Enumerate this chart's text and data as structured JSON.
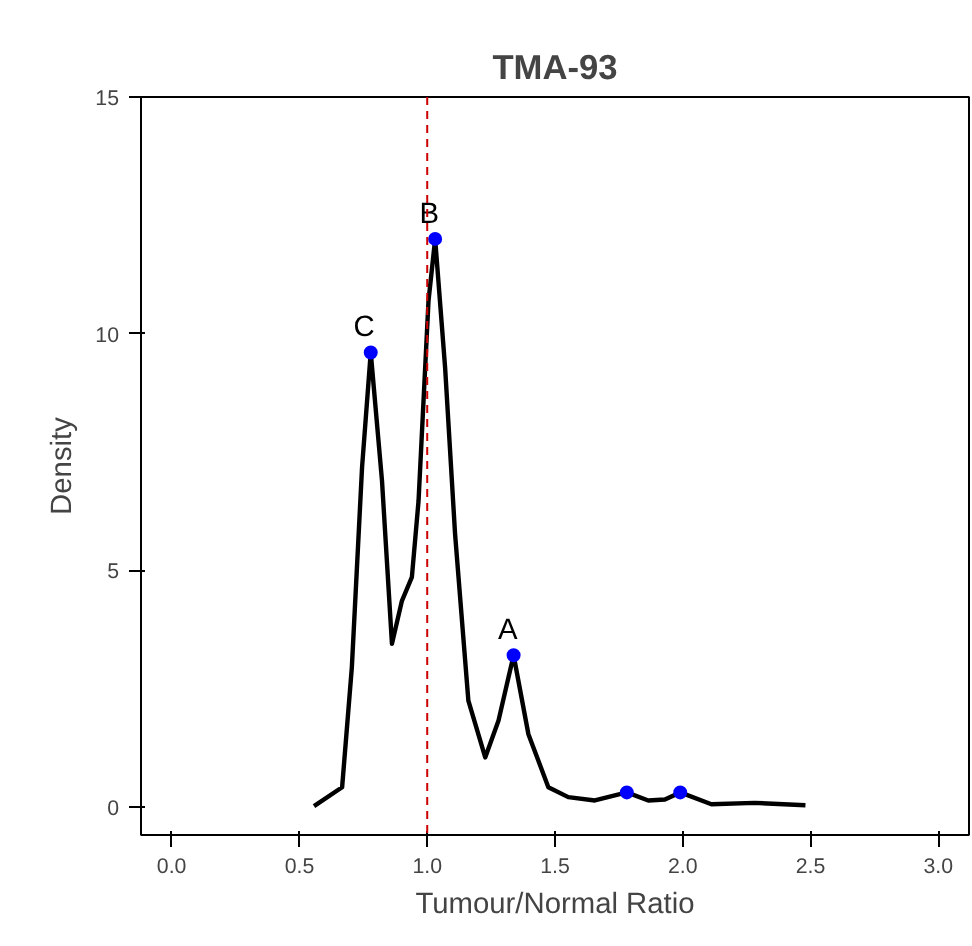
{
  "chart_data": {
    "type": "line",
    "title": "TMA-93",
    "xlabel": "Tumour/Normal Ratio",
    "ylabel": "Density",
    "xlim": [
      -0.12,
      3.12
    ],
    "ylim": [
      -0.6,
      15
    ],
    "xticks": [
      {
        "value": 0,
        "label": "0.0"
      },
      {
        "value": 0.5,
        "label": "0.5"
      },
      {
        "value": 1,
        "label": "1.0"
      },
      {
        "value": 1.5,
        "label": "1.5"
      },
      {
        "value": 2,
        "label": "2.0"
      },
      {
        "value": 2.5,
        "label": "2.5"
      },
      {
        "value": 3,
        "label": "3.0"
      }
    ],
    "yticks": [
      0,
      5,
      10,
      15
    ],
    "grid": false,
    "series": [
      {
        "type": "line",
        "color": "#000000",
        "x": [
          0.557,
          0.667,
          0.705,
          0.745,
          0.779,
          0.823,
          0.862,
          0.901,
          0.94,
          0.966,
          1.005,
          1.031,
          1.07,
          1.109,
          1.161,
          1.227,
          1.279,
          1.338,
          1.396,
          1.474,
          1.552,
          1.656,
          1.781,
          1.865,
          1.93,
          1.99,
          2.112,
          2.28,
          2.48
        ],
        "values": [
          0.01,
          0.41,
          2.94,
          7.17,
          9.6,
          6.89,
          3.44,
          4.35,
          4.85,
          6.46,
          10.69,
          12.0,
          9.28,
          5.76,
          2.24,
          1.04,
          1.82,
          3.2,
          1.53,
          0.41,
          0.2,
          0.13,
          0.3,
          0.13,
          0.15,
          0.3,
          0.05,
          0.08,
          0.03
        ]
      },
      {
        "type": "scatter",
        "color": "#0000ff",
        "marker": "circle",
        "x": [
          0.779,
          1.031,
          1.338,
          1.781,
          1.99
        ],
        "values": [
          9.6,
          12.0,
          3.2,
          0.3,
          0.3
        ]
      }
    ],
    "ref_lines": [
      {
        "axis": "x",
        "value": 1.0,
        "label": null,
        "color": "#cc0000",
        "line_style": "dashed"
      }
    ],
    "annotations": [
      {
        "text": "C",
        "x": 0.779,
        "y": 9.6
      },
      {
        "text": "B",
        "x": 1.031,
        "y": 12.0
      },
      {
        "text": "A",
        "x": 1.338,
        "y": 3.2
      }
    ]
  }
}
